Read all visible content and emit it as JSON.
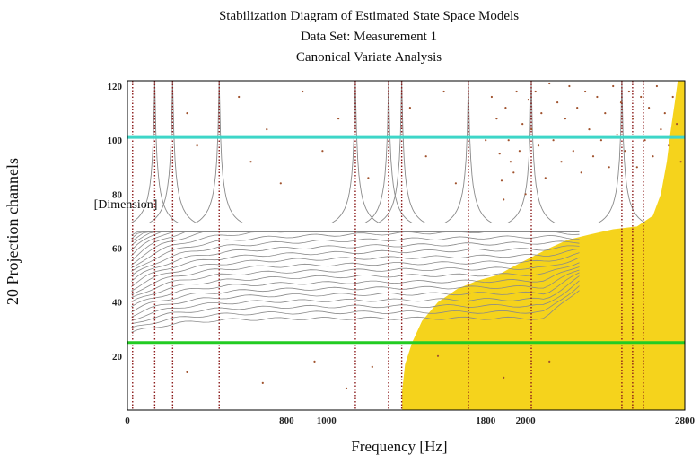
{
  "chart_data": {
    "type": "scatter",
    "title_lines": [
      "Stabilization Diagram of Estimated State Space Models",
      "Data Set: Measurement 1",
      "Canonical Variate Analysis"
    ],
    "xlabel": "Frequency [Hz]",
    "ylabel": "[Dimension]",
    "side_label": "20 Projection channels",
    "xlim": [
      0,
      2800
    ],
    "ylim": [
      0,
      122
    ],
    "x_tick_values": [
      0,
      800,
      1000,
      1800,
      2000,
      2800
    ],
    "x_tick_labels": [
      "0",
      "800",
      "1000",
      "1800",
      "2000",
      "2800"
    ],
    "y_ticks": [
      20,
      40,
      60,
      80,
      100,
      120
    ],
    "hlines": [
      {
        "y": 101,
        "color": "#3ed6c8"
      },
      {
        "y": 25,
        "color": "#22cc22"
      }
    ],
    "colors": {
      "stable_poles": "#8b1a1a",
      "scatter_poles": "#a0522d",
      "trajectories": "#8a8a8a",
      "region": "#f5d31c"
    },
    "stable_modes_x": [
      26,
      137,
      227,
      461,
      1145,
      1312,
      1378,
      1713,
      2029,
      2484,
      2538,
      2592
    ],
    "scatter_points": [
      [
        1830,
        116
      ],
      [
        1855,
        108
      ],
      [
        1870,
        95
      ],
      [
        1880,
        85
      ],
      [
        1890,
        78
      ],
      [
        1900,
        112
      ],
      [
        1915,
        100
      ],
      [
        1925,
        92
      ],
      [
        1940,
        88
      ],
      [
        1955,
        118
      ],
      [
        1970,
        96
      ],
      [
        1985,
        106
      ],
      [
        2000,
        80
      ],
      [
        2015,
        115
      ],
      [
        2030,
        104
      ],
      [
        2050,
        118
      ],
      [
        2065,
        98
      ],
      [
        2080,
        110
      ],
      [
        2100,
        86
      ],
      [
        2120,
        121
      ],
      [
        2140,
        100
      ],
      [
        2160,
        114
      ],
      [
        2180,
        92
      ],
      [
        2200,
        108
      ],
      [
        2220,
        120
      ],
      [
        2240,
        96
      ],
      [
        2260,
        112
      ],
      [
        2280,
        88
      ],
      [
        2300,
        118
      ],
      [
        2320,
        104
      ],
      [
        2340,
        94
      ],
      [
        2360,
        116
      ],
      [
        2380,
        100
      ],
      [
        2400,
        110
      ],
      [
        2420,
        90
      ],
      [
        2440,
        120
      ],
      [
        2460,
        102
      ],
      [
        2480,
        114
      ],
      [
        2500,
        96
      ],
      [
        2520,
        118
      ],
      [
        2540,
        108
      ],
      [
        2560,
        90
      ],
      [
        2580,
        116
      ],
      [
        2600,
        100
      ],
      [
        2620,
        112
      ],
      [
        2640,
        94
      ],
      [
        2660,
        120
      ],
      [
        2680,
        104
      ],
      [
        2700,
        110
      ],
      [
        2720,
        98
      ],
      [
        2740,
        116
      ],
      [
        2760,
        106
      ],
      [
        2780,
        92
      ],
      [
        300,
        110
      ],
      [
        350,
        98
      ],
      [
        560,
        116
      ],
      [
        620,
        92
      ],
      [
        700,
        104
      ],
      [
        770,
        84
      ],
      [
        880,
        118
      ],
      [
        980,
        96
      ],
      [
        1060,
        108
      ],
      [
        1210,
        86
      ],
      [
        1420,
        112
      ],
      [
        1500,
        94
      ],
      [
        1590,
        118
      ],
      [
        1650,
        84
      ],
      [
        1800,
        100
      ],
      [
        300,
        14
      ],
      [
        680,
        10
      ],
      [
        940,
        18
      ],
      [
        1100,
        8
      ],
      [
        1230,
        16
      ],
      [
        1560,
        20
      ],
      [
        1890,
        12
      ],
      [
        2120,
        18
      ]
    ],
    "region_label": "",
    "dimension_label_position": "left"
  }
}
